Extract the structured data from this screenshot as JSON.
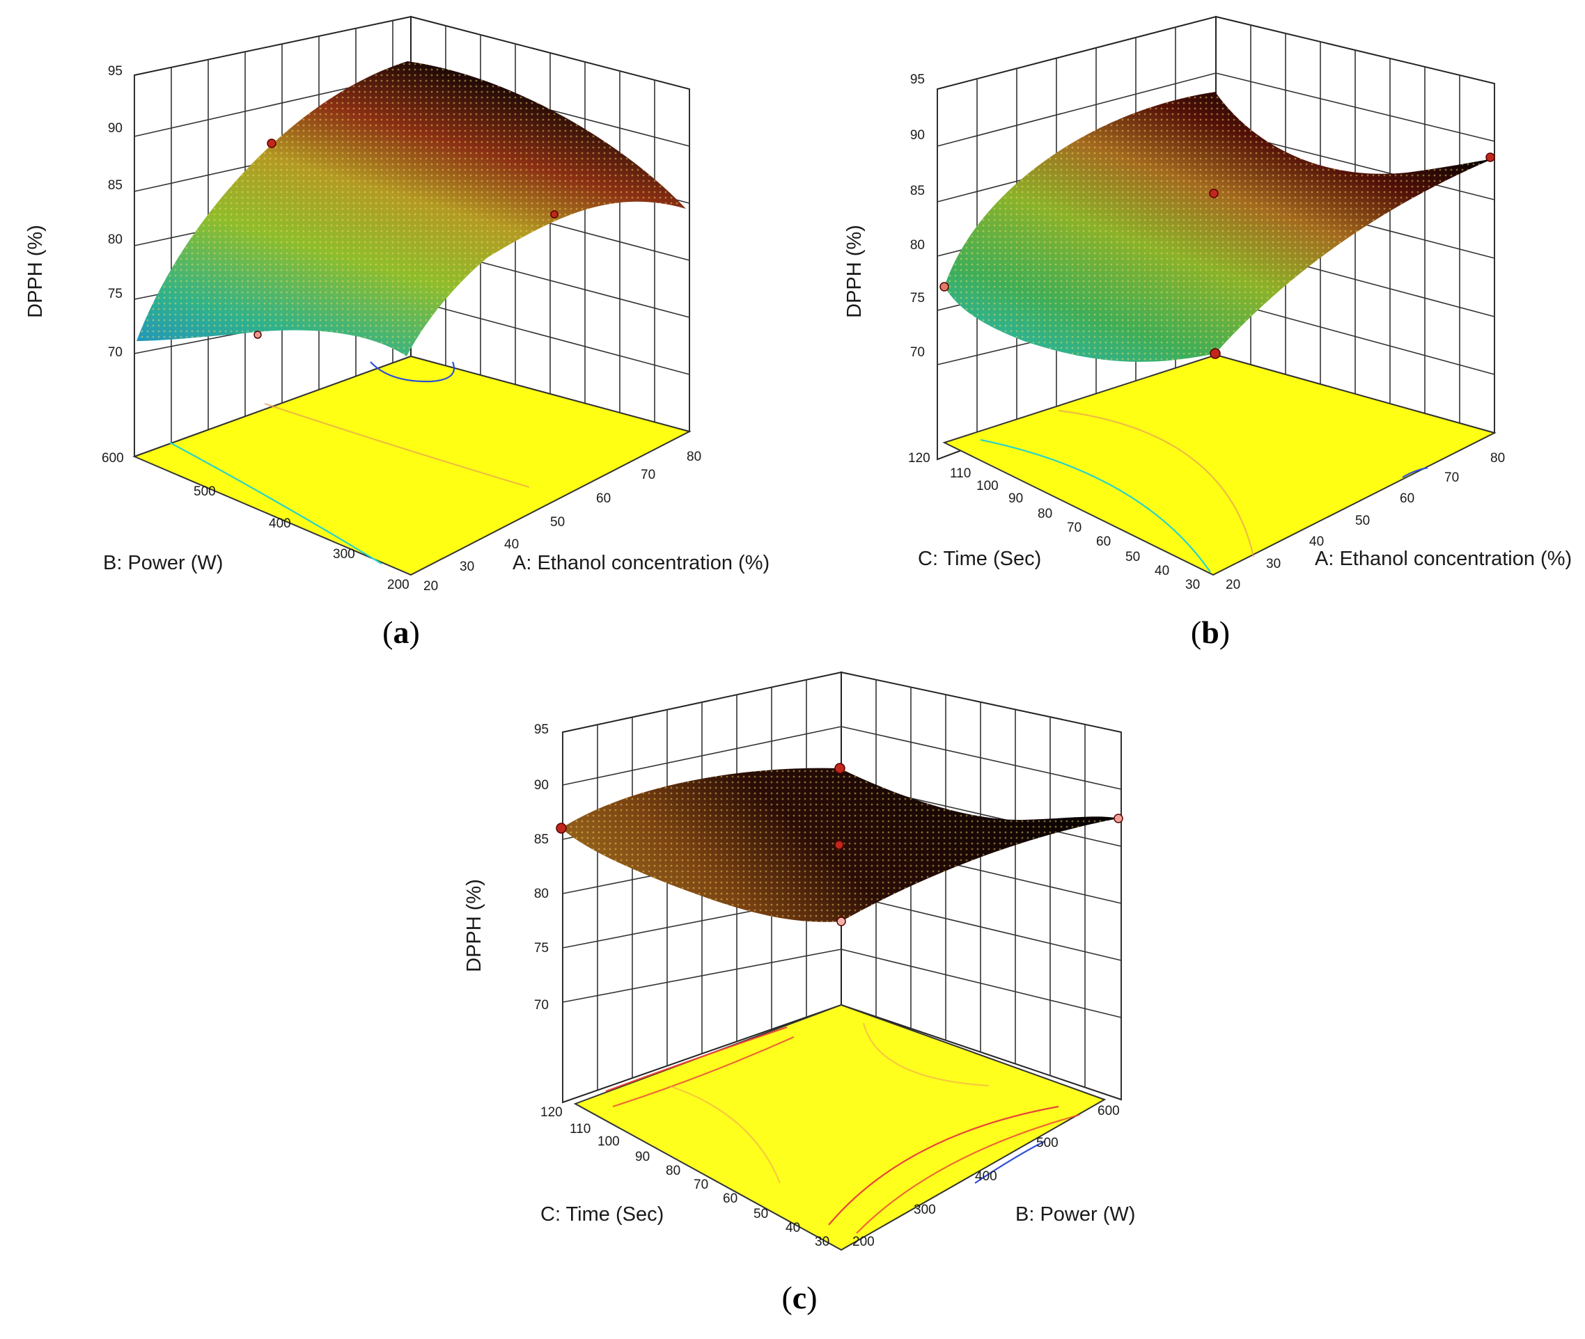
{
  "figure": {
    "panels": [
      {
        "label_open": "(",
        "label_letter": "a",
        "label_close": ")",
        "z_axis_title": "DPPH (%)",
        "x_axis_title": "A: Ethanol concentration (%)",
        "y_axis_title": "B: Power (W)",
        "z_ticks": [
          "95",
          "90",
          "85",
          "80",
          "75",
          "70"
        ],
        "x_ticks": [
          "20",
          "30",
          "40",
          "50",
          "60",
          "70",
          "80"
        ],
        "y_ticks": [
          "600",
          "500",
          "400",
          "300",
          "200"
        ]
      },
      {
        "label_open": "(",
        "label_letter": "b",
        "label_close": ")",
        "z_axis_title": "DPPH (%)",
        "x_axis_title": "A: Ethanol concentration (%)",
        "y_axis_title": "C: Time (Sec)",
        "z_ticks": [
          "95",
          "90",
          "85",
          "80",
          "75",
          "70"
        ],
        "x_ticks": [
          "20",
          "30",
          "40",
          "50",
          "60",
          "70",
          "80"
        ],
        "y_ticks": [
          "120",
          "110",
          "100",
          "90",
          "80",
          "70",
          "60",
          "50",
          "40",
          "30"
        ]
      },
      {
        "label_open": "(",
        "label_letter": "c",
        "label_close": ")",
        "z_axis_title": "DPPH (%)",
        "x_axis_title": "B: Power (W)",
        "y_axis_title": "C: Time (Sec)",
        "z_ticks": [
          "95",
          "90",
          "85",
          "80",
          "75",
          "70"
        ],
        "x_ticks": [
          "200",
          "300",
          "400",
          "500",
          "600"
        ],
        "y_ticks": [
          "120",
          "110",
          "100",
          "90",
          "80",
          "70",
          "60",
          "50",
          "40",
          "30"
        ]
      }
    ]
  },
  "chart_data": [
    {
      "type": "surface",
      "x_label": "A: Ethanol concentration (%)",
      "y_label": "B: Power (W)",
      "z_label": "DPPH (%)",
      "x_range": [
        20,
        80
      ],
      "y_range": [
        200,
        600
      ],
      "z_range": [
        70,
        95
      ],
      "corners": [
        {
          "x": 20,
          "y": 200,
          "z": 80
        },
        {
          "x": 80,
          "y": 200,
          "z": 82
        },
        {
          "x": 20,
          "y": 600,
          "z": 71
        },
        {
          "x": 80,
          "y": 600,
          "z": 78
        }
      ],
      "maximum": {
        "x": 62,
        "y": 380,
        "z": 95
      },
      "design_points": [
        {
          "x": 20,
          "y": 600,
          "z": 88
        },
        {
          "x": 80,
          "y": 200,
          "z": 84
        },
        {
          "x": 20,
          "y": 200,
          "z": 72
        }
      ],
      "floor_contours": [
        {
          "color": "#2e4fd6",
          "value": 70
        },
        {
          "color": "#29d3c9",
          "value": 72
        },
        {
          "color": "#e8a052",
          "value": 78
        }
      ]
    },
    {
      "type": "surface",
      "x_label": "A: Ethanol concentration (%)",
      "y_label": "C: Time (Sec)",
      "z_label": "DPPH (%)",
      "x_range": [
        20,
        80
      ],
      "y_range": [
        30,
        120
      ],
      "z_range": [
        70,
        95
      ],
      "corners": [
        {
          "x": 20,
          "y": 30,
          "z": 70
        },
        {
          "x": 80,
          "y": 30,
          "z": 88
        },
        {
          "x": 20,
          "y": 120,
          "z": 76
        },
        {
          "x": 80,
          "y": 120,
          "z": 93
        }
      ],
      "maximum": {
        "x": 60,
        "y": 115,
        "z": 94
      },
      "design_points": [
        {
          "x": 20,
          "y": 120,
          "z": 76
        },
        {
          "x": 80,
          "y": 30,
          "z": 88
        },
        {
          "x": 20,
          "y": 30,
          "z": 70
        },
        {
          "x": 50,
          "y": 75,
          "z": 85
        }
      ],
      "floor_contours": [
        {
          "color": "#29d3c9",
          "value": 74
        },
        {
          "color": "#2e4fd6",
          "value": 70
        },
        {
          "color": "#e8a052",
          "value": 82
        }
      ]
    },
    {
      "type": "surface",
      "x_label": "B: Power (W)",
      "y_label": "C: Time (Sec)",
      "z_label": "DPPH (%)",
      "x_range": [
        200,
        600
      ],
      "y_range": [
        30,
        120
      ],
      "z_range": [
        70,
        95
      ],
      "corners": [
        {
          "x": 200,
          "y": 30,
          "z": 80
        },
        {
          "x": 600,
          "y": 30,
          "z": 87
        },
        {
          "x": 200,
          "y": 120,
          "z": 87
        },
        {
          "x": 600,
          "y": 120,
          "z": 91
        }
      ],
      "saddle": {
        "x": 400,
        "y": 75,
        "z": 85
      },
      "design_points": [
        {
          "x": 200,
          "y": 120,
          "z": 87
        },
        {
          "x": 600,
          "y": 30,
          "z": 87
        },
        {
          "x": 200,
          "y": 30,
          "z": 80
        },
        {
          "x": 400,
          "y": 75,
          "z": 85
        },
        {
          "x": 600,
          "y": 120,
          "z": 92
        }
      ],
      "floor_contours": [
        {
          "color": "#e8453a",
          "value": 84
        },
        {
          "color": "#f2b24a",
          "value": 86
        },
        {
          "color": "#2e4fd6",
          "value": 80
        }
      ]
    }
  ]
}
